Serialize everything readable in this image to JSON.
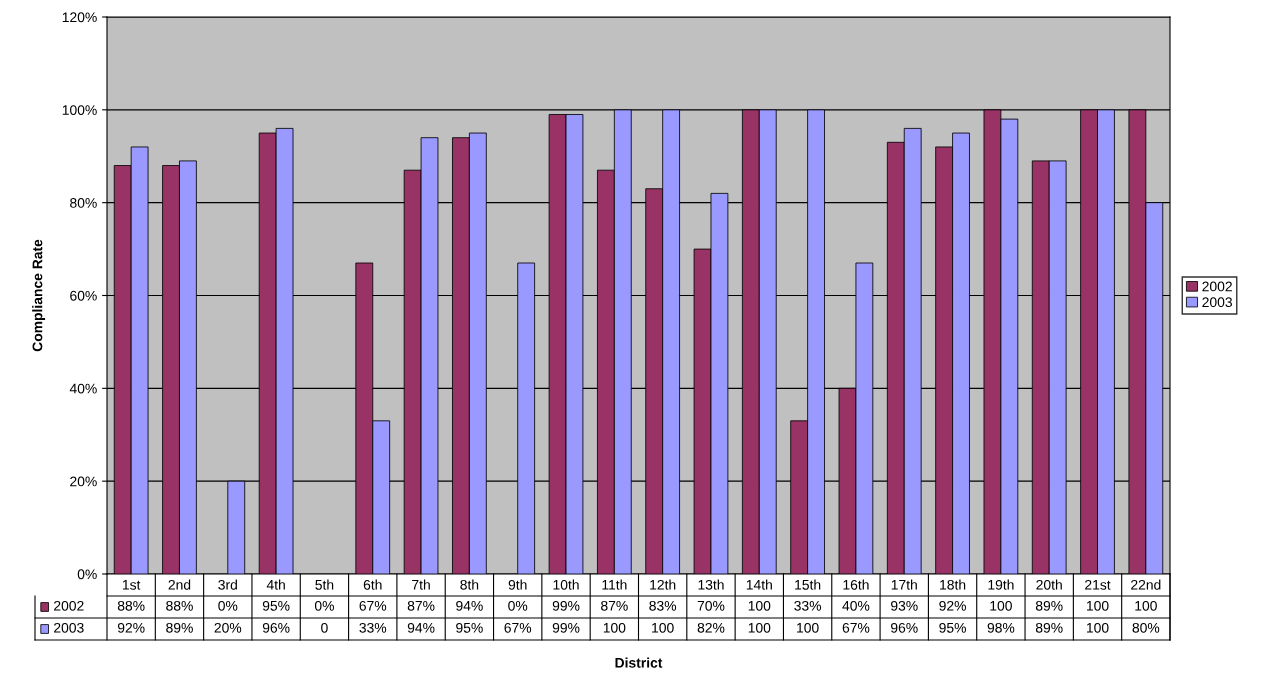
{
  "chart_data": {
    "type": "bar",
    "ylabel": "Compliance Rate",
    "annotations": [
      "District"
    ],
    "categories": [
      "1st",
      "2nd",
      "3rd",
      "4th",
      "5th",
      "6th",
      "7th",
      "8th",
      "9th",
      "10th",
      "11th",
      "12th",
      "13th",
      "14th",
      "15th",
      "16th",
      "17th",
      "18th",
      "19th",
      "20th",
      "21st",
      "22nd"
    ],
    "series": [
      {
        "name": "2002",
        "color": "#993366",
        "values": [
          88,
          88,
          0,
          95,
          0,
          67,
          87,
          94,
          0,
          99,
          87,
          83,
          70,
          100,
          33,
          40,
          93,
          92,
          100,
          89,
          100,
          100
        ],
        "value_labels": [
          "88%",
          "88%",
          "0%",
          "95%",
          "0%",
          "67%",
          "87%",
          "94%",
          "0%",
          "99%",
          "87%",
          "83%",
          "70%",
          "100",
          "33%",
          "40%",
          "93%",
          "92%",
          "100",
          "89%",
          "100",
          "100"
        ]
      },
      {
        "name": "2003",
        "color": "#9999ff",
        "values": [
          92,
          89,
          20,
          96,
          0,
          33,
          94,
          95,
          67,
          99,
          100,
          100,
          82,
          100,
          100,
          67,
          96,
          95,
          98,
          89,
          100,
          80
        ],
        "value_labels": [
          "92%",
          "89%",
          "20%",
          "96%",
          "0",
          "33%",
          "94%",
          "95%",
          "67%",
          "99%",
          "100",
          "100",
          "82%",
          "100",
          "100",
          "67%",
          "96%",
          "95%",
          "98%",
          "89%",
          "100",
          "80%"
        ]
      }
    ],
    "ylim": [
      0,
      120
    ],
    "yticks": [
      {
        "value": 0,
        "label": "0%"
      },
      {
        "value": 20,
        "label": "20%"
      },
      {
        "value": 40,
        "label": "40%"
      },
      {
        "value": 60,
        "label": "60%"
      },
      {
        "value": 80,
        "label": "80%"
      },
      {
        "value": 100,
        "label": "100%"
      },
      {
        "value": 120,
        "label": "120%"
      }
    ],
    "grid": "y",
    "legend": "right"
  }
}
